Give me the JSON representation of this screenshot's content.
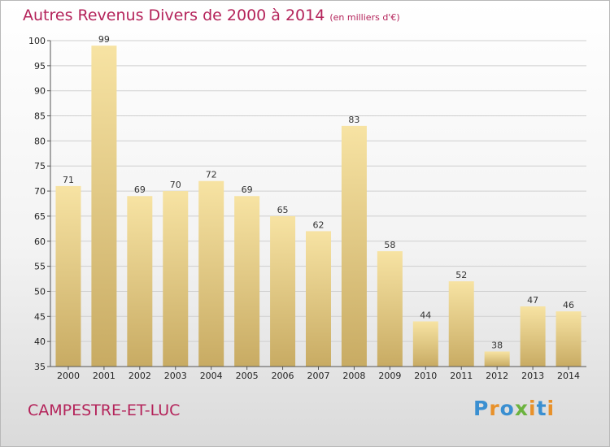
{
  "title": "Autres Revenus Divers de 2000 à 2014",
  "subtitle": "(en milliers d'€)",
  "town": "CAMPESTRE-ET-LUC",
  "logo": {
    "text": "Proxiti",
    "letters": [
      {
        "ch": "P",
        "color": "#3a8fd1"
      },
      {
        "ch": "r",
        "color": "#e8912a"
      },
      {
        "ch": "o",
        "color": "#3a8fd1"
      },
      {
        "ch": "x",
        "color": "#6cb33f"
      },
      {
        "ch": "i",
        "color": "#e8912a"
      },
      {
        "ch": "t",
        "color": "#3a8fd1"
      },
      {
        "ch": "i",
        "color": "#e8912a"
      }
    ]
  },
  "colors": {
    "title": "#b4235a",
    "bar_light": "#f7e3a3",
    "bar_dark": "#c8ab63"
  },
  "chart_data": {
    "type": "bar",
    "title": "Autres Revenus Divers de 2000 à 2014",
    "subtitle": "(en milliers d'€)",
    "categories": [
      "2000",
      "2001",
      "2002",
      "2003",
      "2004",
      "2005",
      "2006",
      "2007",
      "2008",
      "2009",
      "2010",
      "2011",
      "2012",
      "2013",
      "2014"
    ],
    "values": [
      71,
      99,
      69,
      70,
      72,
      69,
      65,
      62,
      83,
      58,
      44,
      52,
      38,
      47,
      46
    ],
    "ylim": [
      35,
      100
    ],
    "yticks": [
      35,
      40,
      45,
      50,
      55,
      60,
      65,
      70,
      75,
      80,
      85,
      90,
      95,
      100
    ],
    "grid": true,
    "data_labels": true
  }
}
